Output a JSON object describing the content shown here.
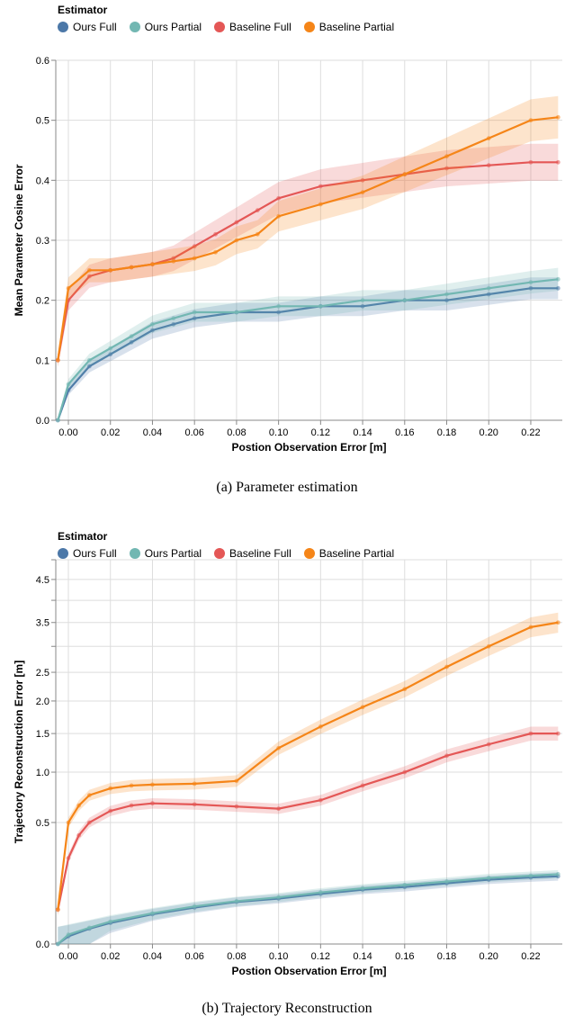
{
  "chart_data": [
    {
      "type": "line",
      "subtitle": "(a) Parameter estimation",
      "xlabel": "Postion Observation Error [m]",
      "ylabel": "Mean Parameter Cosine Error",
      "xlim": [
        -0.006,
        0.235
      ],
      "ylim": [
        0,
        0.6
      ],
      "x_ticks": [
        "0.00",
        "0.02",
        "0.04",
        "0.06",
        "0.08",
        "0.10",
        "0.12",
        "0.14",
        "0.16",
        "0.18",
        "0.20",
        "0.22"
      ],
      "y_ticks": [
        "0.0",
        "0.1",
        "0.2",
        "0.3",
        "0.4",
        "0.5",
        "0.6"
      ],
      "legend_title": "Estimator",
      "legend_position": "top-left",
      "grid": true,
      "series": [
        {
          "name": "Ours Full",
          "color": "#4c78a8",
          "x": [
            -0.005,
            0.0,
            0.01,
            0.02,
            0.03,
            0.04,
            0.05,
            0.06,
            0.08,
            0.1,
            0.12,
            0.14,
            0.16,
            0.18,
            0.2,
            0.22,
            0.233
          ],
          "values": [
            0.0,
            0.05,
            0.09,
            0.11,
            0.13,
            0.15,
            0.16,
            0.17,
            0.18,
            0.18,
            0.19,
            0.19,
            0.2,
            0.2,
            0.21,
            0.22,
            0.22
          ]
        },
        {
          "name": "Ours Partial",
          "color": "#72b7b2",
          "x": [
            -0.005,
            0.0,
            0.01,
            0.02,
            0.03,
            0.04,
            0.05,
            0.06,
            0.08,
            0.1,
            0.12,
            0.14,
            0.16,
            0.18,
            0.2,
            0.22,
            0.233
          ],
          "values": [
            0.0,
            0.06,
            0.1,
            0.12,
            0.14,
            0.16,
            0.17,
            0.18,
            0.18,
            0.19,
            0.19,
            0.2,
            0.2,
            0.21,
            0.22,
            0.23,
            0.235
          ]
        },
        {
          "name": "Baseline Full",
          "color": "#e45756",
          "x": [
            -0.005,
            0.0,
            0.01,
            0.02,
            0.03,
            0.04,
            0.05,
            0.06,
            0.07,
            0.08,
            0.09,
            0.1,
            0.12,
            0.14,
            0.16,
            0.18,
            0.2,
            0.22,
            0.233
          ],
          "values": [
            0.1,
            0.2,
            0.24,
            0.25,
            0.255,
            0.26,
            0.27,
            0.29,
            0.31,
            0.33,
            0.35,
            0.37,
            0.39,
            0.4,
            0.41,
            0.42,
            0.425,
            0.43,
            0.43
          ]
        },
        {
          "name": "Baseline Partial",
          "color": "#f58518",
          "x": [
            -0.005,
            0.0,
            0.01,
            0.02,
            0.03,
            0.04,
            0.05,
            0.06,
            0.07,
            0.08,
            0.09,
            0.1,
            0.12,
            0.14,
            0.16,
            0.18,
            0.2,
            0.22,
            0.233
          ],
          "values": [
            0.1,
            0.22,
            0.25,
            0.25,
            0.255,
            0.26,
            0.265,
            0.27,
            0.28,
            0.3,
            0.31,
            0.34,
            0.36,
            0.38,
            0.41,
            0.44,
            0.47,
            0.5,
            0.505
          ]
        }
      ]
    },
    {
      "type": "line",
      "subtitle": "(b) Trajectory Reconstruction",
      "xlabel": "Postion Observation Error [m]",
      "ylabel": "Trajectory Reconstruction Error [m]",
      "xlim": [
        -0.006,
        0.235
      ],
      "ylim": [
        0,
        5
      ],
      "y_scale": "sqrt",
      "x_ticks": [
        "0.00",
        "0.02",
        "0.04",
        "0.06",
        "0.08",
        "0.10",
        "0.12",
        "0.14",
        "0.16",
        "0.18",
        "0.20",
        "0.22"
      ],
      "y_ticks": [
        "0.0",
        "0.5",
        "1.0",
        "1.5",
        "2.0",
        "2.5",
        "3.5",
        "4.5"
      ],
      "legend_title": "Estimator",
      "legend_position": "top-left",
      "grid": true,
      "series": [
        {
          "name": "Ours Full",
          "color": "#4c78a8",
          "x": [
            -0.005,
            0.0,
            0.01,
            0.02,
            0.04,
            0.06,
            0.08,
            0.1,
            0.12,
            0.14,
            0.16,
            0.18,
            0.2,
            0.22,
            0.233
          ],
          "values": [
            0.0,
            0.002,
            0.008,
            0.015,
            0.03,
            0.045,
            0.06,
            0.07,
            0.085,
            0.1,
            0.11,
            0.125,
            0.14,
            0.15,
            0.155
          ]
        },
        {
          "name": "Ours Partial",
          "color": "#72b7b2",
          "x": [
            -0.005,
            0.0,
            0.01,
            0.02,
            0.04,
            0.06,
            0.08,
            0.1,
            0.12,
            0.14,
            0.16,
            0.18,
            0.2,
            0.22,
            0.233
          ],
          "values": [
            0.0,
            0.003,
            0.009,
            0.017,
            0.032,
            0.048,
            0.062,
            0.074,
            0.09,
            0.105,
            0.118,
            0.132,
            0.148,
            0.158,
            0.165
          ]
        },
        {
          "name": "Baseline Full",
          "color": "#e45756",
          "x": [
            -0.005,
            0.0,
            0.005,
            0.01,
            0.02,
            0.03,
            0.04,
            0.06,
            0.08,
            0.1,
            0.12,
            0.14,
            0.16,
            0.18,
            0.2,
            0.22,
            0.233
          ],
          "values": [
            0.04,
            0.25,
            0.4,
            0.5,
            0.6,
            0.65,
            0.67,
            0.66,
            0.64,
            0.62,
            0.7,
            0.85,
            1.0,
            1.2,
            1.35,
            1.5,
            1.5
          ]
        },
        {
          "name": "Baseline Partial",
          "color": "#f58518",
          "x": [
            -0.005,
            0.0,
            0.005,
            0.01,
            0.02,
            0.03,
            0.04,
            0.06,
            0.08,
            0.1,
            0.12,
            0.14,
            0.16,
            0.18,
            0.2,
            0.22,
            0.233
          ],
          "values": [
            0.04,
            0.5,
            0.65,
            0.75,
            0.82,
            0.85,
            0.86,
            0.87,
            0.9,
            1.3,
            1.6,
            1.9,
            2.2,
            2.6,
            3.0,
            3.4,
            3.5
          ]
        }
      ]
    }
  ]
}
